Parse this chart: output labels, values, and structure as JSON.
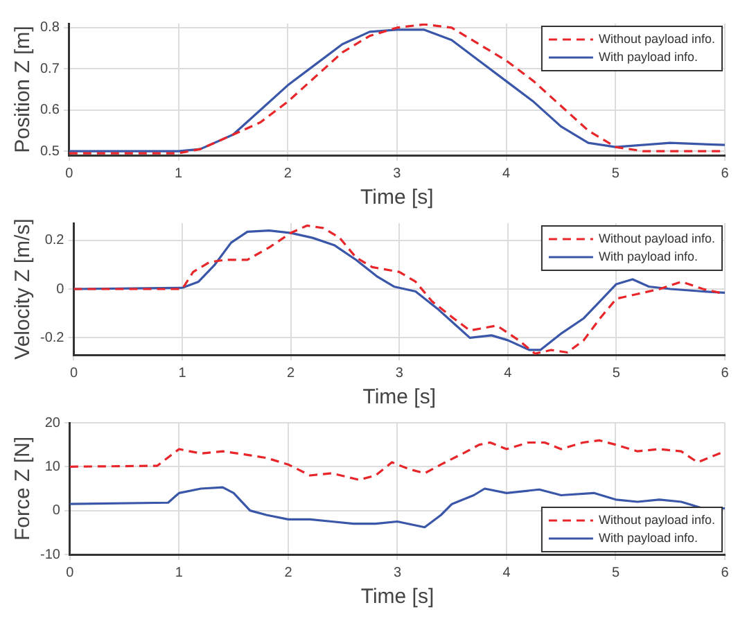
{
  "chart_data": [
    {
      "type": "line",
      "xlabel": "Time [s]",
      "ylabel": "Position Z [m]",
      "xlim": [
        0,
        6
      ],
      "xticks": [
        0,
        1,
        2,
        3,
        4,
        5,
        6
      ],
      "ylim": [
        0.49,
        0.81
      ],
      "yticks": [
        0.5,
        0.6,
        0.7,
        0.8
      ],
      "grid": true,
      "legend": "top right",
      "marker": "none",
      "series": [
        {
          "name": "Without payload info.",
          "color": "#e8262a",
          "line_style": "dashed",
          "x": [
            0,
            1,
            1.2,
            1.5,
            1.75,
            2,
            2.25,
            2.5,
            2.75,
            3,
            3.25,
            3.5,
            3.75,
            4,
            4.25,
            4.5,
            4.75,
            5,
            5.25,
            6
          ],
          "values": [
            0.495,
            0.495,
            0.505,
            0.54,
            0.57,
            0.62,
            0.68,
            0.74,
            0.78,
            0.8,
            0.808,
            0.8,
            0.76,
            0.72,
            0.67,
            0.61,
            0.55,
            0.51,
            0.5,
            0.5
          ]
        },
        {
          "name": "With payload info.",
          "color": "#3a56a8",
          "line_style": "solid",
          "x": [
            0,
            1,
            1.2,
            1.5,
            1.75,
            2,
            2.25,
            2.5,
            2.75,
            3,
            3.25,
            3.5,
            3.75,
            4,
            4.25,
            4.5,
            4.75,
            5,
            5.25,
            5.5,
            6
          ],
          "values": [
            0.5,
            0.5,
            0.505,
            0.54,
            0.6,
            0.66,
            0.71,
            0.76,
            0.79,
            0.795,
            0.795,
            0.77,
            0.72,
            0.67,
            0.62,
            0.56,
            0.52,
            0.51,
            0.515,
            0.52,
            0.515
          ]
        }
      ]
    },
    {
      "type": "line",
      "xlabel": "Time [s]",
      "ylabel": "Velocity Z [m/s]",
      "xlim": [
        0,
        6
      ],
      "xticks": [
        0,
        1,
        2,
        3,
        4,
        5,
        6
      ],
      "ylim": [
        -0.27,
        0.27
      ],
      "yticks": [
        -0.2,
        0,
        0.2
      ],
      "grid": true,
      "legend": "top right",
      "marker": "none",
      "series": [
        {
          "name": "Without payload info.",
          "color": "#e8262a",
          "line_style": "dashed",
          "x": [
            0,
            1,
            1.1,
            1.25,
            1.4,
            1.6,
            1.8,
            2,
            2.15,
            2.3,
            2.45,
            2.6,
            2.75,
            3,
            3.15,
            3.3,
            3.5,
            3.65,
            3.9,
            4.1,
            4.25,
            4.4,
            4.55,
            4.7,
            4.85,
            5,
            5.2,
            5.4,
            5.6,
            5.8,
            6
          ],
          "values": [
            0,
            0,
            0.07,
            0.11,
            0.12,
            0.12,
            0.17,
            0.23,
            0.26,
            0.25,
            0.21,
            0.13,
            0.09,
            0.07,
            0.03,
            -0.05,
            -0.12,
            -0.17,
            -0.15,
            -0.21,
            -0.265,
            -0.25,
            -0.26,
            -0.21,
            -0.12,
            -0.04,
            -0.02,
            0,
            0.03,
            0,
            -0.02
          ]
        },
        {
          "name": "With payload info.",
          "color": "#3a56a8",
          "line_style": "solid",
          "x": [
            0,
            1,
            1.15,
            1.3,
            1.45,
            1.6,
            1.8,
            2,
            2.2,
            2.4,
            2.6,
            2.8,
            2.95,
            3.15,
            3.35,
            3.5,
            3.65,
            3.85,
            4,
            4.2,
            4.3,
            4.5,
            4.7,
            4.85,
            5,
            5.15,
            5.3,
            5.5,
            5.8,
            6
          ],
          "values": [
            0,
            0.005,
            0.03,
            0.1,
            0.19,
            0.235,
            0.24,
            0.23,
            0.21,
            0.18,
            0.12,
            0.05,
            0.01,
            -0.01,
            -0.08,
            -0.14,
            -0.2,
            -0.19,
            -0.21,
            -0.25,
            -0.25,
            -0.18,
            -0.12,
            -0.05,
            0.02,
            0.04,
            0.01,
            0,
            -0.01,
            -0.015
          ]
        }
      ]
    },
    {
      "type": "line",
      "xlabel": "Time [s]",
      "ylabel": "Force Z [N]",
      "xlim": [
        0,
        6
      ],
      "xticks": [
        0,
        1,
        2,
        3,
        4,
        5,
        6
      ],
      "ylim": [
        -10,
        20
      ],
      "yticks": [
        -10,
        0,
        10,
        20
      ],
      "grid": true,
      "legend": "bottom right",
      "marker": "none",
      "series": [
        {
          "name": "Without payload info.",
          "color": "#e8262a",
          "line_style": "dashed",
          "x": [
            0,
            0.8,
            1,
            1.2,
            1.4,
            1.6,
            1.8,
            2,
            2.2,
            2.4,
            2.65,
            2.8,
            2.95,
            3.1,
            3.25,
            3.4,
            3.6,
            3.75,
            3.85,
            4,
            4.2,
            4.35,
            4.5,
            4.7,
            4.85,
            5,
            5.2,
            5.4,
            5.6,
            5.75,
            5.9,
            6
          ],
          "values": [
            10,
            10.2,
            14,
            13,
            13.5,
            12.8,
            12,
            10.5,
            8,
            8.5,
            7,
            8,
            11,
            9.5,
            8.5,
            10.5,
            13,
            15,
            15.5,
            14,
            15.5,
            15.5,
            14,
            15.5,
            16,
            15,
            13.5,
            14,
            13.5,
            11,
            12.5,
            13.5
          ]
        },
        {
          "name": "With payload info.",
          "color": "#3a56a8",
          "line_style": "solid",
          "x": [
            0,
            0.9,
            1,
            1.2,
            1.4,
            1.5,
            1.65,
            1.8,
            2,
            2.2,
            2.4,
            2.6,
            2.8,
            3,
            3.25,
            3.4,
            3.5,
            3.7,
            3.8,
            4,
            4.3,
            4.5,
            4.8,
            5,
            5.2,
            5.4,
            5.6,
            5.8,
            6
          ],
          "values": [
            1.5,
            1.8,
            4,
            5,
            5.3,
            4,
            0,
            -1,
            -2,
            -2,
            -2.5,
            -3,
            -3,
            -2.5,
            -3.8,
            -1,
            1.5,
            3.5,
            5,
            4,
            4.8,
            3.5,
            4,
            2.5,
            2,
            2.5,
            2,
            0.5,
            0.5
          ]
        }
      ]
    }
  ]
}
